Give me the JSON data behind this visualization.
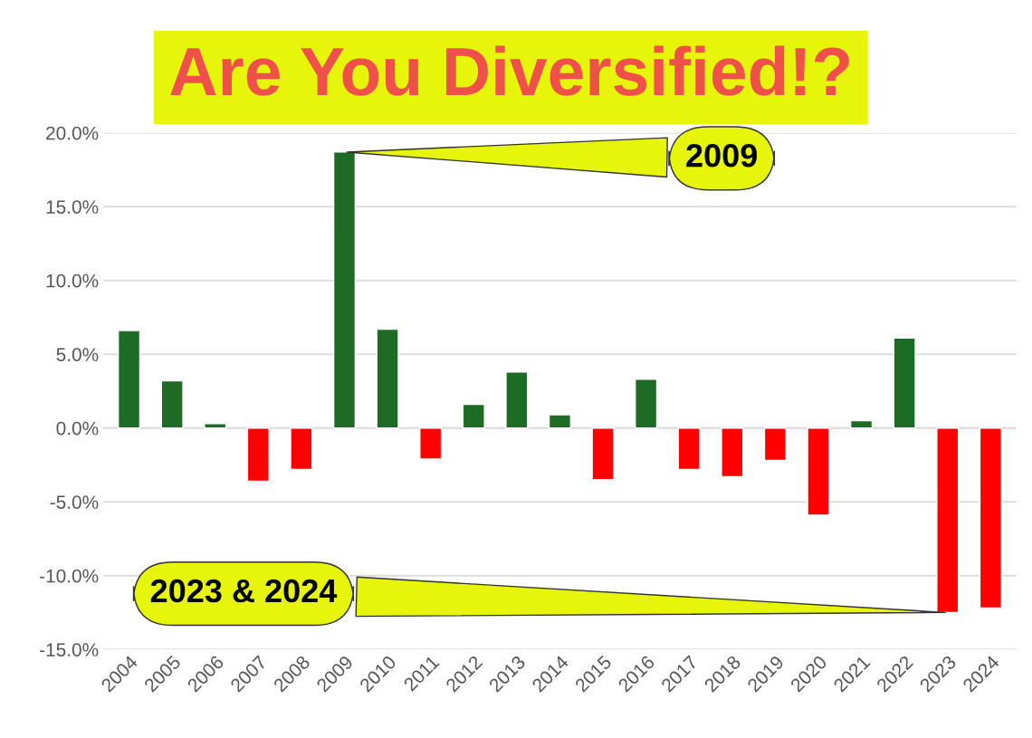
{
  "chart_data": {
    "type": "bar",
    "title": "Are You Diversified!?",
    "categories": [
      "2004",
      "2005",
      "2006",
      "2007",
      "2008",
      "2009",
      "2010",
      "2011",
      "2012",
      "2013",
      "2014",
      "2015",
      "2016",
      "2017",
      "2018",
      "2019",
      "2020",
      "2021",
      "2022",
      "2023",
      "2024"
    ],
    "values": [
      6.6,
      3.2,
      0.3,
      -3.6,
      -2.8,
      18.7,
      6.7,
      -2.1,
      1.6,
      3.8,
      0.9,
      -3.5,
      3.3,
      -2.8,
      -3.3,
      -2.2,
      -5.9,
      0.5,
      6.1,
      -12.5,
      -12.2
    ],
    "colors": [
      "#1d6b24",
      "#1d6b24",
      "#1d6b24",
      "#ff0000",
      "#ff0000",
      "#1d6b24",
      "#1d6b24",
      "#ff0000",
      "#1d6b24",
      "#1d6b24",
      "#1d6b24",
      "#ff0000",
      "#1d6b24",
      "#ff0000",
      "#ff0000",
      "#ff0000",
      "#ff0000",
      "#1d6b24",
      "#1d6b24",
      "#ff0000",
      "#ff0000"
    ],
    "ylim": [
      -15,
      20
    ],
    "yticks": [
      {
        "value": -15,
        "label": "-15.0%"
      },
      {
        "value": -10,
        "label": "-10.0%"
      },
      {
        "value": -5,
        "label": "-5.0%"
      },
      {
        "value": 0,
        "label": "0.0%"
      },
      {
        "value": 5,
        "label": "5.0%"
      },
      {
        "value": 10,
        "label": "10.0%"
      },
      {
        "value": 15,
        "label": "15.0%"
      },
      {
        "value": 20,
        "label": "20.0%"
      }
    ],
    "grid": "y",
    "annotations": [
      {
        "text": "2009",
        "x": "2009",
        "y": 18.7
      },
      {
        "text": "2023 & 2024",
        "x": "2023",
        "y": -12.5
      }
    ]
  }
}
